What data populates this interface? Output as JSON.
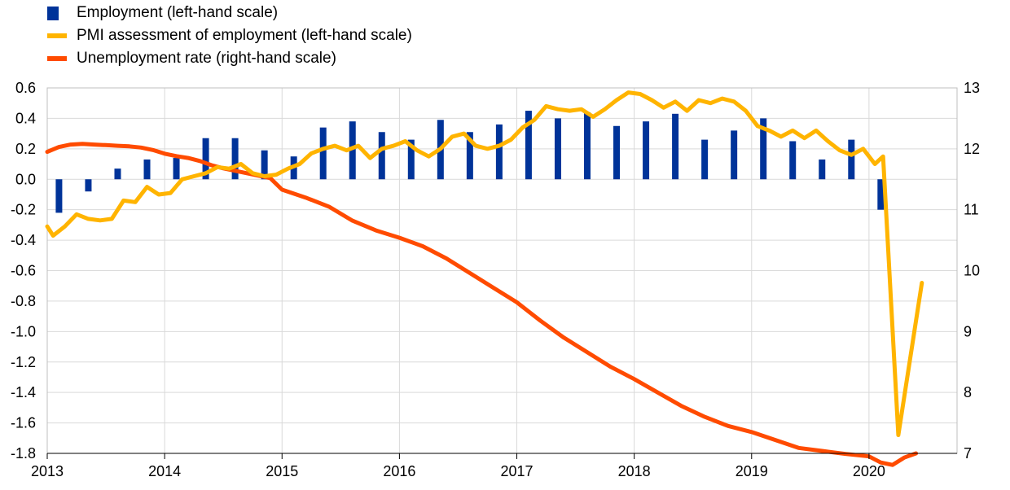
{
  "chart_data": {
    "type": "bar+line",
    "legend": [
      {
        "label": "Employment (left-hand scale)",
        "kind": "bar",
        "color": "#003399"
      },
      {
        "label": "PMI assessment of employment (left-hand scale)",
        "kind": "line",
        "color": "#FFB400"
      },
      {
        "label": "Unemployment rate (right-hand scale)",
        "kind": "line",
        "color": "#FF4B00"
      }
    ],
    "x_axis": {
      "labels": [
        "2013",
        "2014",
        "2015",
        "2016",
        "2017",
        "2018",
        "2019",
        "2020"
      ],
      "range": [
        2013.0,
        2020.75
      ]
    },
    "y_left": {
      "ylim": [
        -1.8,
        0.6
      ],
      "ticks": [
        "0.6",
        "0.4",
        "0.2",
        "0.0",
        "-0.2",
        "-0.4",
        "-0.6",
        "-0.8",
        "-1.0",
        "-1.2",
        "-1.4",
        "-1.6",
        "-1.8"
      ]
    },
    "y_right": {
      "ylim": [
        7,
        13
      ],
      "ticks": [
        "13",
        "12",
        "11",
        "10",
        "9",
        "8",
        "7"
      ]
    },
    "grid": true,
    "series": [
      {
        "name": "Employment (left-hand scale)",
        "type": "bar",
        "axis": "left",
        "x": [
          2013.1,
          2013.35,
          2013.6,
          2013.85,
          2014.1,
          2014.35,
          2014.6,
          2014.85,
          2015.1,
          2015.35,
          2015.6,
          2015.85,
          2016.1,
          2016.35,
          2016.6,
          2016.85,
          2017.1,
          2017.35,
          2017.6,
          2017.85,
          2018.1,
          2018.35,
          2018.6,
          2018.85,
          2019.1,
          2019.35,
          2019.6,
          2019.85,
          2020.1
        ],
        "values": [
          -0.22,
          -0.08,
          0.07,
          0.13,
          0.14,
          0.27,
          0.27,
          0.19,
          0.15,
          0.34,
          0.38,
          0.31,
          0.26,
          0.39,
          0.31,
          0.36,
          0.45,
          0.4,
          0.44,
          0.35,
          0.38,
          0.43,
          0.26,
          0.32,
          0.4,
          0.25,
          0.13,
          0.26,
          -0.2
        ]
      },
      {
        "name": "PMI assessment of employment (left-hand scale)",
        "type": "line",
        "axis": "left",
        "x": [
          2013.0,
          2013.05,
          2013.15,
          2013.25,
          2013.35,
          2013.45,
          2013.55,
          2013.65,
          2013.75,
          2013.85,
          2013.95,
          2014.05,
          2014.15,
          2014.25,
          2014.35,
          2014.45,
          2014.55,
          2014.65,
          2014.75,
          2014.85,
          2014.95,
          2015.05,
          2015.15,
          2015.25,
          2015.35,
          2015.45,
          2015.55,
          2015.65,
          2015.75,
          2015.85,
          2015.95,
          2016.05,
          2016.15,
          2016.25,
          2016.35,
          2016.45,
          2016.55,
          2016.65,
          2016.75,
          2016.85,
          2016.95,
          2017.05,
          2017.15,
          2017.25,
          2017.35,
          2017.45,
          2017.55,
          2017.65,
          2017.75,
          2017.85,
          2017.95,
          2018.05,
          2018.15,
          2018.25,
          2018.35,
          2018.45,
          2018.55,
          2018.65,
          2018.75,
          2018.85,
          2018.95,
          2019.05,
          2019.15,
          2019.25,
          2019.35,
          2019.45,
          2019.55,
          2019.65,
          2019.75,
          2019.85,
          2019.95,
          2020.05,
          2020.12,
          2020.25,
          2020.45
        ],
        "values": [
          -0.31,
          -0.37,
          -0.31,
          -0.23,
          -0.26,
          -0.27,
          -0.26,
          -0.14,
          -0.15,
          -0.05,
          -0.1,
          -0.09,
          0.0,
          0.02,
          0.04,
          0.08,
          0.07,
          0.1,
          0.04,
          0.02,
          0.03,
          0.07,
          0.1,
          0.17,
          0.2,
          0.22,
          0.19,
          0.22,
          0.14,
          0.2,
          0.22,
          0.25,
          0.19,
          0.15,
          0.2,
          0.28,
          0.3,
          0.22,
          0.2,
          0.22,
          0.26,
          0.34,
          0.39,
          0.48,
          0.46,
          0.45,
          0.46,
          0.41,
          0.46,
          0.52,
          0.57,
          0.56,
          0.52,
          0.47,
          0.51,
          0.45,
          0.52,
          0.5,
          0.53,
          0.51,
          0.45,
          0.35,
          0.32,
          0.28,
          0.32,
          0.27,
          0.32,
          0.25,
          0.19,
          0.16,
          0.2,
          0.1,
          0.15,
          -1.68,
          -0.68
        ]
      },
      {
        "name": "Unemployment rate (right-hand scale)",
        "type": "line",
        "axis": "right",
        "x": [
          2013.0,
          2013.1,
          2013.2,
          2013.3,
          2013.4,
          2013.5,
          2013.6,
          2013.7,
          2013.8,
          2013.9,
          2014.0,
          2014.1,
          2014.2,
          2014.3,
          2014.4,
          2014.5,
          2014.6,
          2014.7,
          2014.8,
          2014.9,
          2015.0,
          2015.2,
          2015.4,
          2015.6,
          2015.8,
          2016.0,
          2016.2,
          2016.4,
          2016.6,
          2016.8,
          2017.0,
          2017.2,
          2017.4,
          2017.6,
          2017.8,
          2018.0,
          2018.2,
          2018.4,
          2018.6,
          2018.8,
          2019.0,
          2019.2,
          2019.4,
          2019.6,
          2019.8,
          2020.0,
          2020.1,
          2020.2,
          2020.3,
          2020.4
        ],
        "values": [
          11.95,
          12.03,
          12.07,
          12.08,
          12.07,
          12.06,
          12.05,
          12.04,
          12.02,
          11.98,
          11.92,
          11.88,
          11.85,
          11.8,
          11.73,
          11.68,
          11.64,
          11.6,
          11.56,
          11.52,
          11.33,
          11.2,
          11.05,
          10.82,
          10.66,
          10.54,
          10.4,
          10.2,
          9.96,
          9.72,
          9.48,
          9.18,
          8.9,
          8.66,
          8.42,
          8.22,
          8.0,
          7.78,
          7.6,
          7.45,
          7.35,
          7.22,
          7.09,
          7.04,
          6.99,
          6.95,
          6.85,
          6.81,
          6.93,
          7.0
        ]
      }
    ]
  }
}
